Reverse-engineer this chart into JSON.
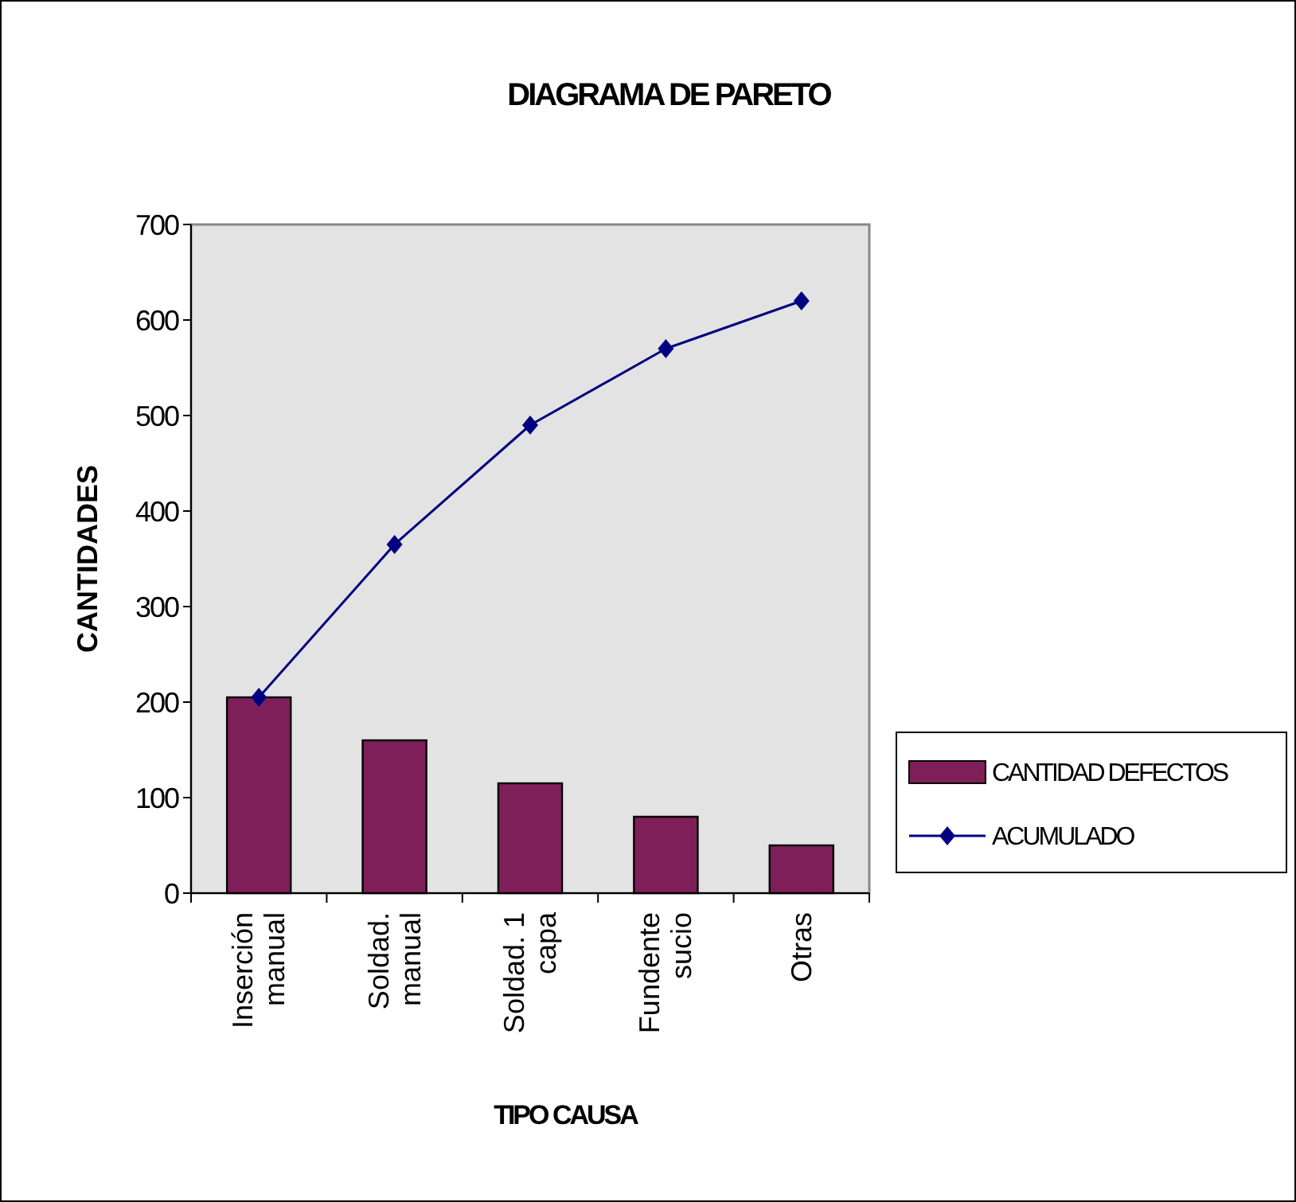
{
  "chart_data": {
    "type": "bar",
    "title": "DIAGRAMA DE PARETO",
    "xlabel": "TIPO CAUSA",
    "ylabel": "CANTIDADES",
    "categories": [
      "Inserción manual",
      "Soldad. manual",
      "Soldad. 1 capa",
      "Fundente sucio",
      "Otras"
    ],
    "series": [
      {
        "name": "CANTIDAD DEFECTOS",
        "color": "#7f1f5a",
        "values": [
          205,
          160,
          115,
          80,
          50
        ]
      },
      {
        "name": "ACUMULADO",
        "type": "line",
        "color": "#000080",
        "values": [
          205,
          365,
          490,
          570,
          620
        ],
        "marker": "diamond"
      }
    ],
    "ylim": [
      0,
      700
    ],
    "yticks": [
      0,
      100,
      200,
      300,
      400,
      500,
      600,
      700
    ],
    "legend": "right",
    "grid": false
  }
}
